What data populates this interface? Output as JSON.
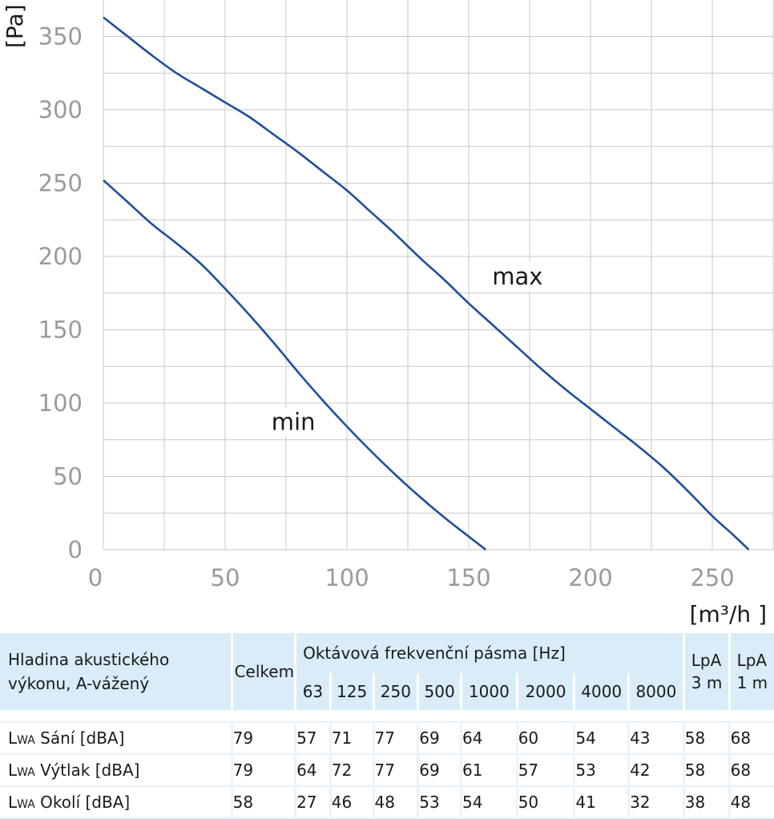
{
  "chart_data": {
    "type": "line",
    "xlabel": "[m³/h ]",
    "ylabel": "[Pa]",
    "xlim": [
      0,
      275
    ],
    "ylim": [
      0,
      365
    ],
    "xticks": [
      0,
      50,
      100,
      150,
      200,
      250
    ],
    "yticks": [
      0,
      50,
      100,
      150,
      200,
      250,
      300,
      350
    ],
    "grid": true,
    "series": [
      {
        "name": "max",
        "color": "#1f4e9c",
        "x": [
          0,
          10,
          20,
          30,
          40,
          50,
          60,
          70,
          80,
          90,
          100,
          110,
          120,
          130,
          140,
          150,
          160,
          170,
          180,
          190,
          200,
          210,
          220,
          230,
          240,
          250,
          258,
          265
        ],
        "y": [
          363,
          350,
          337,
          325,
          315,
          305,
          295,
          283,
          271,
          258,
          245,
          230,
          215,
          199,
          184,
          168,
          153,
          138,
          123,
          109,
          96,
          83,
          70,
          56,
          40,
          23,
          11,
          0
        ]
      },
      {
        "name": "min",
        "color": "#1f4e9c",
        "x": [
          0,
          10,
          20,
          30,
          40,
          50,
          60,
          70,
          80,
          90,
          100,
          110,
          120,
          130,
          140,
          150,
          157
        ],
        "y": [
          252,
          237,
          222,
          209,
          195,
          178,
          160,
          141,
          121,
          102,
          84,
          67,
          51,
          36,
          22,
          9,
          0
        ]
      }
    ],
    "annotations": [
      {
        "text": "max",
        "x": 170,
        "y": 183
      },
      {
        "text": "min",
        "x": 78,
        "y": 84
      }
    ]
  },
  "table": {
    "header_label": "Hladina akustického výkonu, A-vážený",
    "celkem": "Celkem",
    "octave_title": "Oktávová frekvenční pásma [Hz]",
    "bands": [
      "63",
      "125",
      "250",
      "500",
      "1000",
      "2000",
      "4000",
      "8000"
    ],
    "lpa3": "LpA 3 m",
    "lpa1": "LpA 1 m",
    "rows": [
      {
        "prefix": "L",
        "sub": "WA",
        "label": " Sání [dBA]",
        "values": [
          "79",
          "57",
          "71",
          "77",
          "69",
          "64",
          "60",
          "54",
          "43",
          "58",
          "68"
        ]
      },
      {
        "prefix": "L",
        "sub": "WA",
        "label": " Výtlak [dBA]",
        "values": [
          "79",
          "64",
          "72",
          "77",
          "69",
          "61",
          "57",
          "53",
          "42",
          "58",
          "68"
        ]
      },
      {
        "prefix": "L",
        "sub": "WA",
        "label": " Okolí [dBA]",
        "values": [
          "58",
          "27",
          "46",
          "48",
          "53",
          "54",
          "50",
          "41",
          "32",
          "38",
          "48"
        ]
      }
    ]
  }
}
